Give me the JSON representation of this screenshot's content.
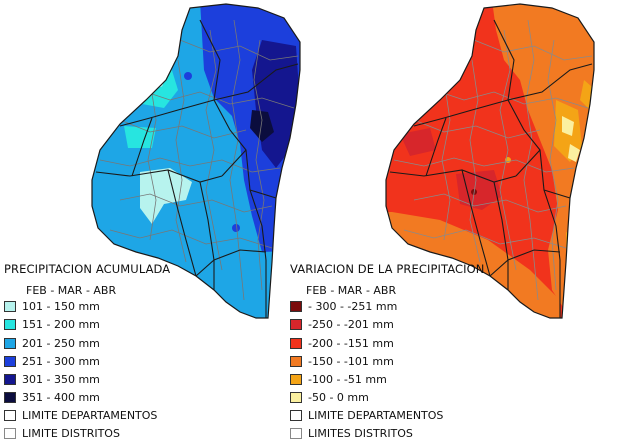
{
  "maps": {
    "left": {
      "legend_title": "PRECIPITACION ACUMULADA",
      "period": "FEB - MAR - ABR",
      "classes": [
        {
          "label": "101 - 150 mm",
          "color": "#b7f3ee"
        },
        {
          "label": "151 - 200 mm",
          "color": "#27e5e0"
        },
        {
          "label": "201 - 250 mm",
          "color": "#1ea6e6"
        },
        {
          "label": "251  - 300 mm",
          "color": "#1c3fdc"
        },
        {
          "label": "301 - 350 mm",
          "color": "#14168f"
        },
        {
          "label": "351 - 400 mm",
          "color": "#0b0d3e"
        }
      ],
      "boundaries": [
        {
          "label": "LIMITE DEPARTAMENTOS"
        },
        {
          "label": "LIMITE DISTRITOS"
        }
      ]
    },
    "right": {
      "legend_title": "VARIACION DE LA PRECIPITACION",
      "period": "FEB - MAR - ABR",
      "classes": [
        {
          "label": "- 300 - -251 mm",
          "color": "#7a0c0c"
        },
        {
          "label": "-250 - -201 mm",
          "color": "#d7262b"
        },
        {
          "label": "-200 - -151 mm",
          "color": "#f1331c"
        },
        {
          "label": "-150 - -101 mm",
          "color": "#f27a22"
        },
        {
          "label": "-100 - -51 mm",
          "color": "#f4a416"
        },
        {
          "label": "-50 - 0 mm",
          "color": "#fbf0a0"
        }
      ],
      "boundaries": [
        {
          "label": "LIMITE DEPARTAMENTOS"
        },
        {
          "label": "LIMITES DISTRITOS"
        }
      ]
    }
  }
}
